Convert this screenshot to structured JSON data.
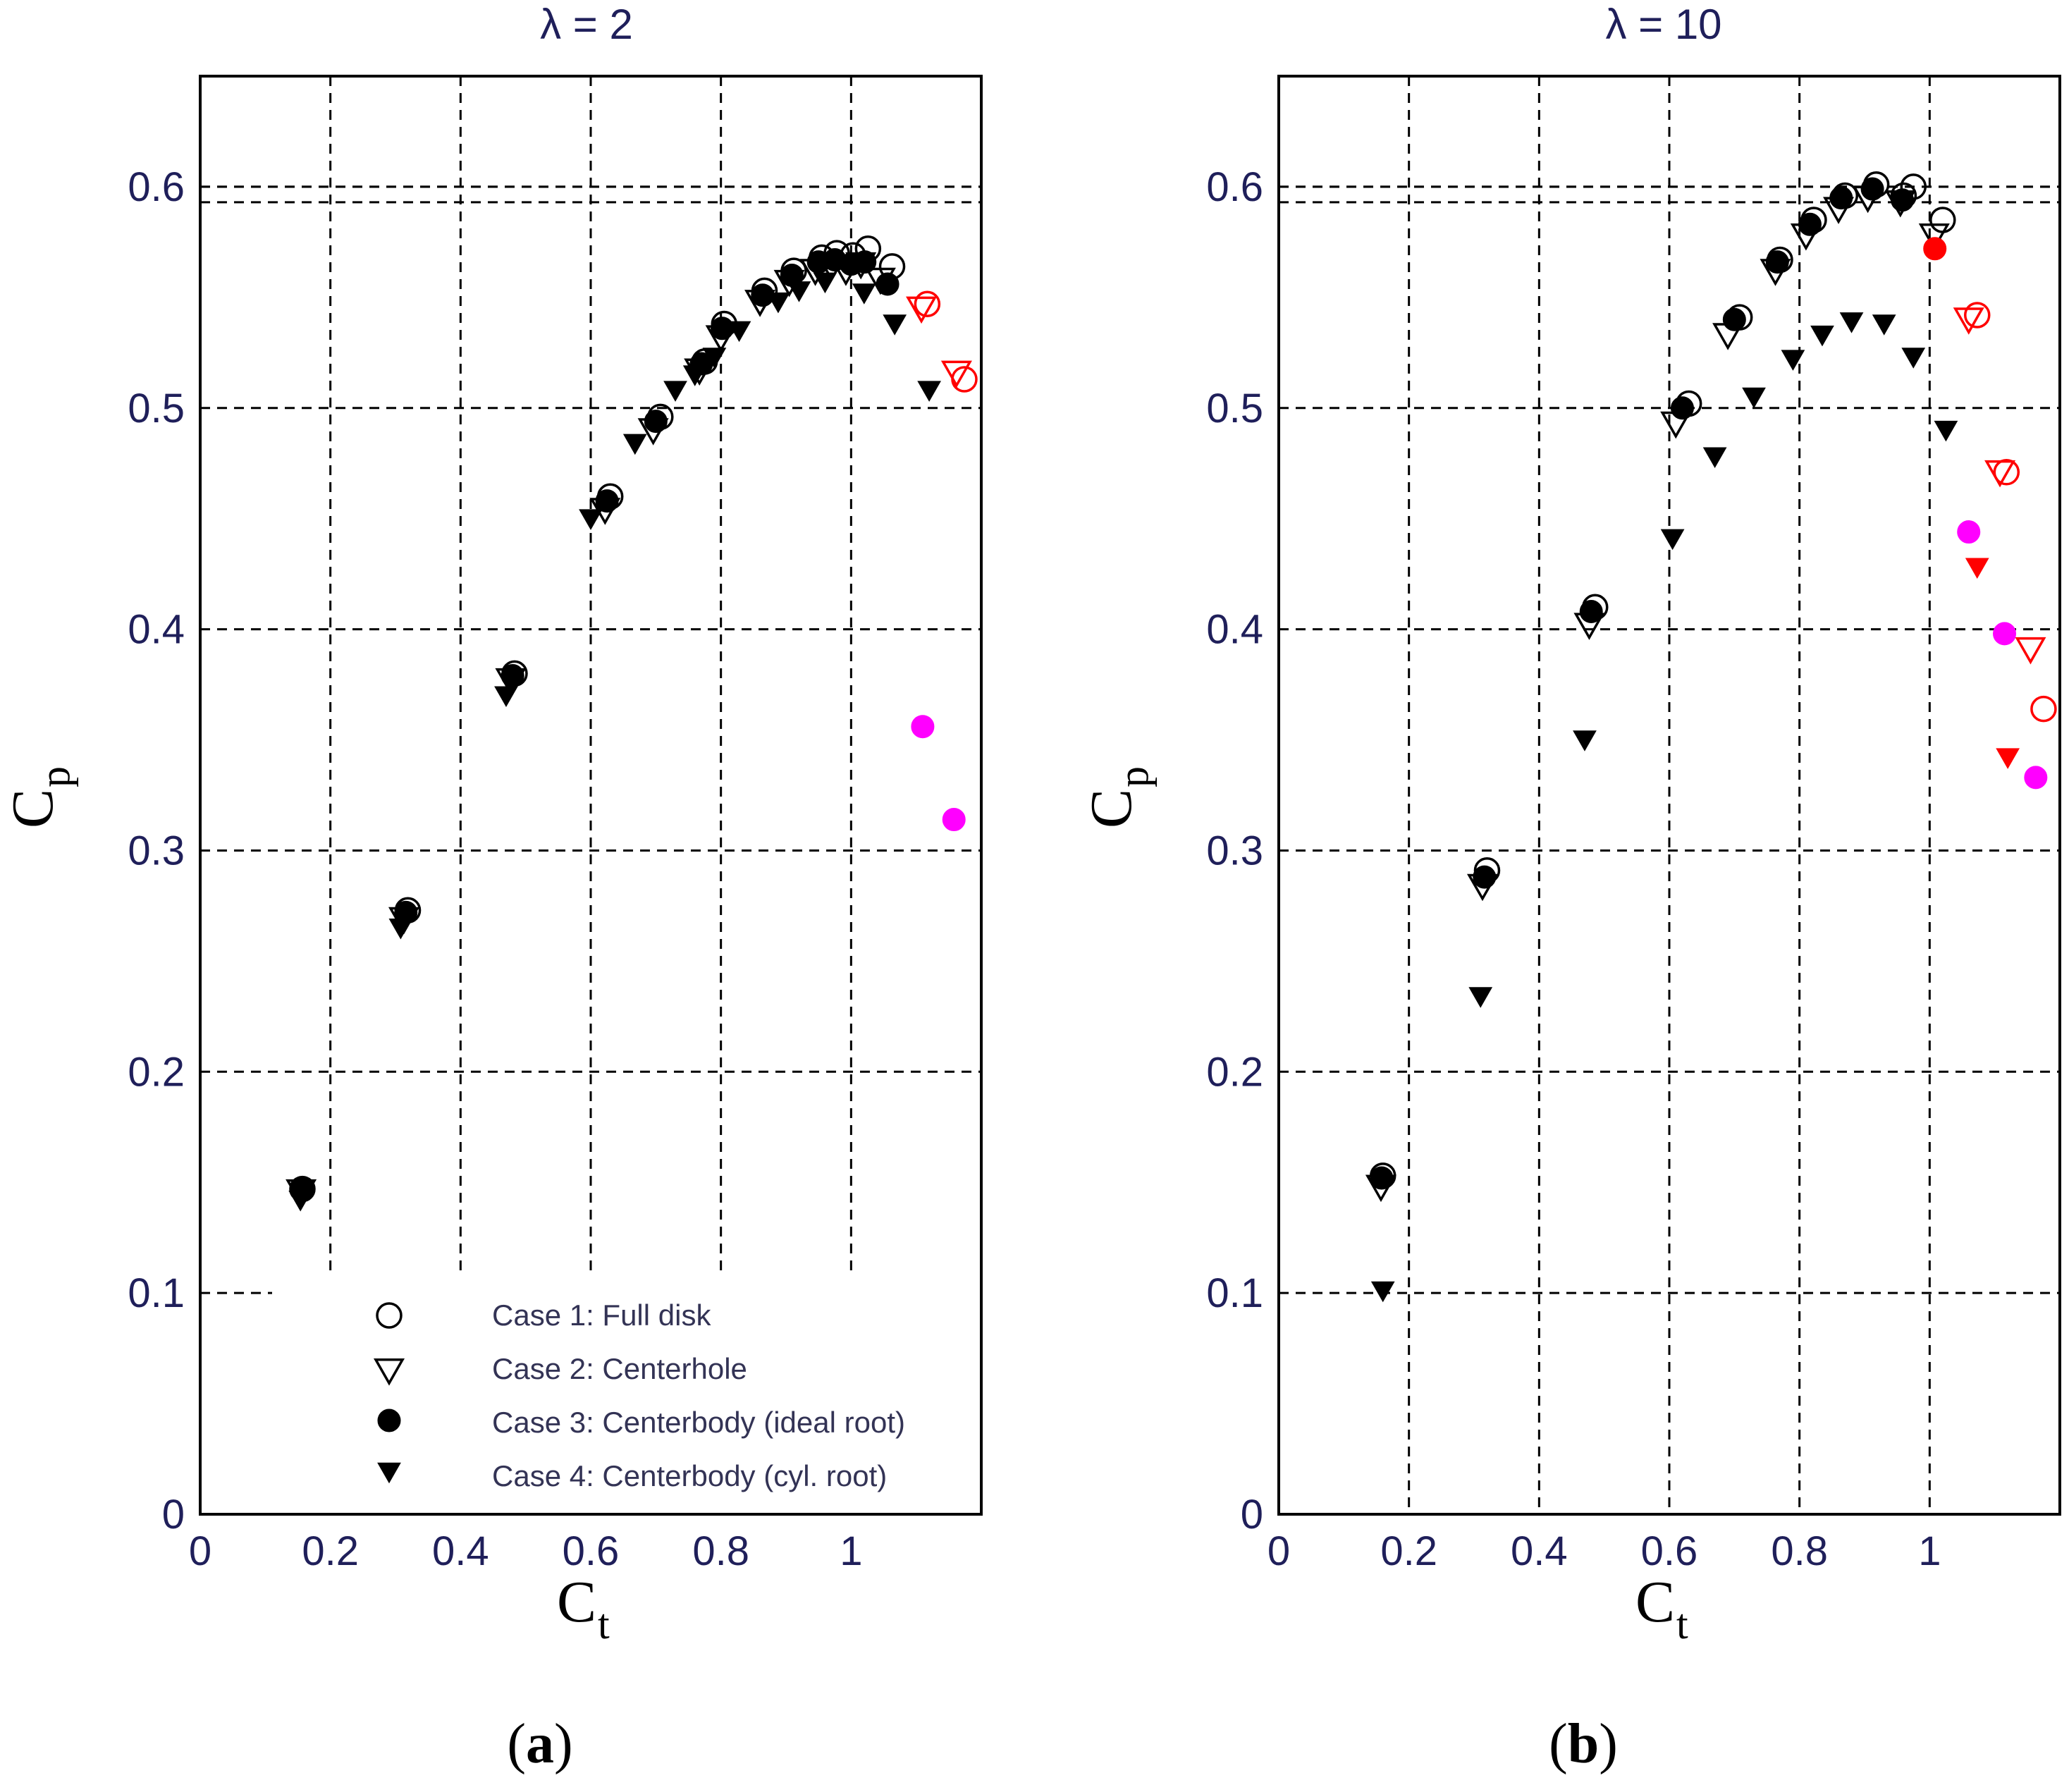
{
  "chart_data": [
    {
      "type": "scatter",
      "panel_label": "a",
      "title": "λ = 2",
      "xlabel": "C",
      "xlabel_sub": "t",
      "ylabel": "C",
      "ylabel_sub": "p",
      "xlim": [
        0,
        1.2
      ],
      "ylim": [
        0,
        0.65
      ],
      "xticks": [
        0,
        0.2,
        0.4,
        0.6,
        0.8,
        1
      ],
      "yticks": [
        0,
        0.1,
        0.2,
        0.3,
        0.4,
        0.5,
        0.6
      ],
      "reference_lines": [
        0.593,
        0.6
      ],
      "grid": true,
      "legend_position": "bottom-center",
      "legend": [
        {
          "label": "Case 1: Full disk",
          "marker": "circle-open"
        },
        {
          "label": "Case 2: Centerhole",
          "marker": "triangle-down-open"
        },
        {
          "label": "Case 3: Centerbody (ideal root)",
          "marker": "circle-filled"
        },
        {
          "label": "Case 4: Centerbody (cyl. root)",
          "marker": "triangle-down-filled"
        }
      ],
      "series": [
        {
          "name": "Case 1: Full disk",
          "marker": "circle-open",
          "color": "#000000",
          "x": [
            0.157,
            0.319,
            0.483,
            0.63,
            0.707,
            0.775,
            0.805,
            0.867,
            0.912,
            0.955,
            0.978,
            1.003,
            1.026,
            1.063
          ],
          "y": [
            0.147,
            0.273,
            0.38,
            0.46,
            0.496,
            0.521,
            0.538,
            0.553,
            0.562,
            0.568,
            0.57,
            0.569,
            0.572,
            0.564
          ]
        },
        {
          "name": "Case 2: Centerhole",
          "marker": "triangle-down-open",
          "color": "#000000",
          "x": [
            0.155,
            0.313,
            0.477,
            0.622,
            0.696,
            0.767,
            0.8,
            0.86,
            0.905,
            0.945,
            0.97,
            0.992,
            1.015,
            1.045
          ],
          "y": [
            0.146,
            0.269,
            0.377,
            0.454,
            0.49,
            0.517,
            0.532,
            0.548,
            0.557,
            0.562,
            0.564,
            0.562,
            0.565,
            0.558
          ]
        },
        {
          "name": "Case 3: Centerbody (ideal root)",
          "marker": "circle-filled",
          "color": "#000000",
          "x": [
            0.156,
            0.316,
            0.48,
            0.625,
            0.7,
            0.77,
            0.802,
            0.864,
            0.909,
            0.95,
            0.975,
            1.0,
            1.021,
            1.056
          ],
          "y": [
            0.147,
            0.272,
            0.379,
            0.458,
            0.494,
            0.52,
            0.536,
            0.551,
            0.56,
            0.566,
            0.567,
            0.565,
            0.566,
            0.556
          ]
        },
        {
          "name": "Case 4: Centerbody (cyl. root)",
          "marker": "triangle-down-filled",
          "color": "#000000",
          "x": [
            0.154,
            0.308,
            0.47,
            0.6,
            0.668,
            0.73,
            0.76,
            0.79,
            0.828,
            0.888,
            0.92,
            0.96,
            1.02,
            1.067,
            1.12
          ],
          "y": [
            0.142,
            0.265,
            0.37,
            0.45,
            0.484,
            0.508,
            0.515,
            0.523,
            0.535,
            0.548,
            0.553,
            0.557,
            0.552,
            0.538,
            0.508
          ]
        },
        {
          "name": "Case 1 (red)",
          "marker": "circle-open",
          "color": "#ff0000",
          "x": [
            1.117,
            1.174
          ],
          "y": [
            0.547,
            0.513
          ]
        },
        {
          "name": "Case 2 (red)",
          "marker": "triangle-down-open",
          "color": "#ff0000",
          "x": [
            1.108,
            1.162
          ],
          "y": [
            0.545,
            0.516
          ]
        },
        {
          "name": "Case 3 (magenta)",
          "marker": "circle-filled",
          "color": "#ff00ff",
          "x": [
            1.11,
            1.158
          ],
          "y": [
            0.356,
            0.314
          ]
        }
      ]
    },
    {
      "type": "scatter",
      "panel_label": "b",
      "title": "λ = 10",
      "xlabel": "C",
      "xlabel_sub": "t",
      "ylabel": "C",
      "ylabel_sub": "p",
      "xlim": [
        0,
        1.2
      ],
      "ylim": [
        0,
        0.65
      ],
      "xticks": [
        0,
        0.2,
        0.4,
        0.6,
        0.8,
        1
      ],
      "yticks": [
        0,
        0.1,
        0.2,
        0.3,
        0.4,
        0.5,
        0.6
      ],
      "reference_lines": [
        0.593,
        0.6
      ],
      "grid": true,
      "series": [
        {
          "name": "Case 1: Full disk",
          "marker": "circle-open",
          "color": "#000000",
          "x": [
            0.16,
            0.32,
            0.486,
            0.63,
            0.708,
            0.77,
            0.822,
            0.87,
            0.918,
            0.96,
            0.975,
            1.02
          ],
          "y": [
            0.153,
            0.291,
            0.41,
            0.502,
            0.541,
            0.567,
            0.585,
            0.596,
            0.601,
            0.596,
            0.6,
            0.585
          ]
        },
        {
          "name": "Case 2: Centerhole",
          "marker": "triangle-down-open",
          "color": "#000000",
          "x": [
            0.157,
            0.313,
            0.477,
            0.61,
            0.69,
            0.763,
            0.81,
            0.86,
            0.905,
            0.955,
            1.007
          ],
          "y": [
            0.148,
            0.284,
            0.402,
            0.493,
            0.533,
            0.562,
            0.578,
            0.59,
            0.595,
            0.593,
            0.578
          ]
        },
        {
          "name": "Case 3: Centerbody (ideal root)",
          "marker": "circle-filled",
          "color": "#000000",
          "x": [
            0.158,
            0.316,
            0.48,
            0.62,
            0.7,
            0.766,
            0.816,
            0.864,
            0.912,
            0.958
          ],
          "y": [
            0.152,
            0.288,
            0.408,
            0.5,
            0.54,
            0.566,
            0.583,
            0.595,
            0.599,
            0.594
          ]
        },
        {
          "name": "Case 4: Centerbody (cyl. root)",
          "marker": "triangle-down-filled",
          "color": "#000000",
          "x": [
            0.16,
            0.31,
            0.47,
            0.605,
            0.67,
            0.73,
            0.79,
            0.835,
            0.88,
            0.93,
            0.975,
            1.025
          ],
          "y": [
            0.101,
            0.234,
            0.35,
            0.441,
            0.478,
            0.505,
            0.522,
            0.533,
            0.539,
            0.538,
            0.523,
            0.49
          ]
        },
        {
          "name": "Case 1 (red)",
          "marker": "circle-open",
          "color": "#ff0000",
          "x": [
            1.073,
            1.118,
            1.175
          ],
          "y": [
            0.542,
            0.471,
            0.364
          ]
        },
        {
          "name": "Case 2 (red)",
          "marker": "triangle-down-open",
          "color": "#ff0000",
          "x": [
            1.06,
            1.108,
            1.155
          ],
          "y": [
            0.54,
            0.471,
            0.391
          ]
        },
        {
          "name": "Case 3 (red)",
          "marker": "circle-filled",
          "color": "#ff0000",
          "x": [
            1.008
          ],
          "y": [
            0.572
          ]
        },
        {
          "name": "Case 4 (red)",
          "marker": "triangle-down-filled",
          "color": "#ff0000",
          "x": [
            1.073,
            1.12
          ],
          "y": [
            0.428,
            0.342
          ]
        },
        {
          "name": "Case 3 (magenta)",
          "marker": "circle-filled",
          "color": "#ff00ff",
          "x": [
            1.06,
            1.115,
            1.163
          ],
          "y": [
            0.444,
            0.398,
            0.333
          ]
        }
      ]
    }
  ]
}
